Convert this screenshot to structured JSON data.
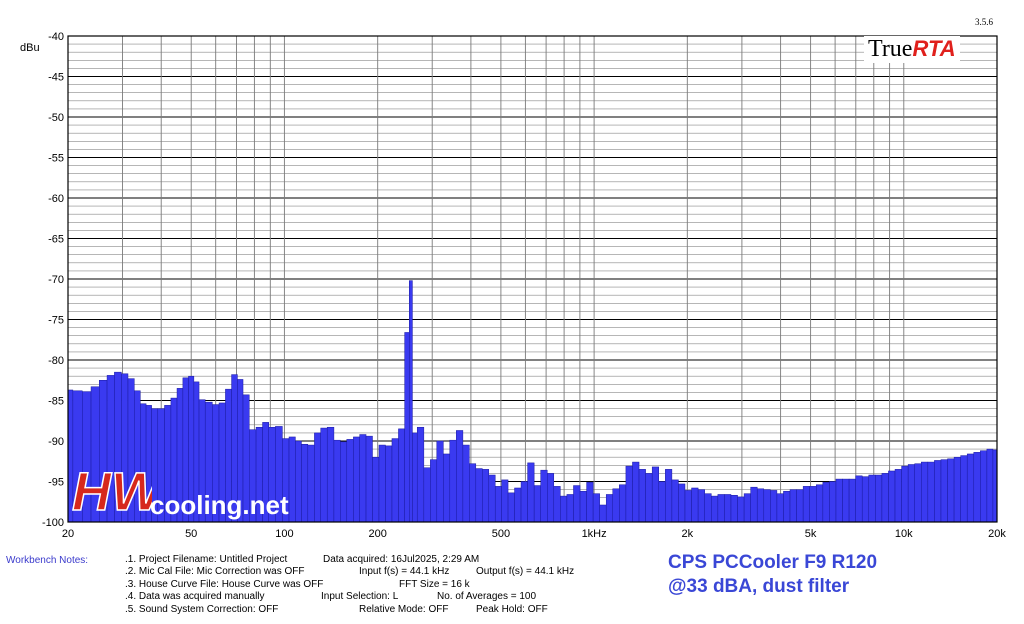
{
  "chart_data": {
    "type": "bar",
    "x_scale": "log",
    "xlim": [
      20,
      20000
    ],
    "ylim": [
      -100,
      -40
    ],
    "ylabel": "dBu",
    "grid": true,
    "bar_color": "#3a3af0",
    "y_ticks": [
      -40,
      -45,
      -50,
      -55,
      -60,
      -65,
      -70,
      -75,
      -80,
      -85,
      -90,
      -95,
      -100
    ],
    "x_tick_labels": [
      {
        "value": 20,
        "label": "20"
      },
      {
        "value": 50,
        "label": "50"
      },
      {
        "value": 100,
        "label": "100"
      },
      {
        "value": 200,
        "label": "200"
      },
      {
        "value": 500,
        "label": "500"
      },
      {
        "value": 1000,
        "label": "1kHz"
      },
      {
        "value": 2000,
        "label": "2k"
      },
      {
        "value": 5000,
        "label": "5k"
      },
      {
        "value": 10000,
        "label": "10k"
      },
      {
        "value": 20000,
        "label": "20k"
      }
    ],
    "points": [
      [
        20,
        -83.7
      ],
      [
        21.5,
        -83.8
      ],
      [
        23,
        -83.9
      ],
      [
        24.5,
        -83.3
      ],
      [
        26,
        -82.5
      ],
      [
        27.5,
        -81.9
      ],
      [
        29,
        -81.5
      ],
      [
        30.5,
        -81.7
      ],
      [
        32,
        -82.3
      ],
      [
        33.5,
        -83.8
      ],
      [
        35,
        -85.4
      ],
      [
        36.5,
        -85.6
      ],
      [
        38,
        -86.0
      ],
      [
        40,
        -86.0
      ],
      [
        42,
        -85.6
      ],
      [
        44,
        -84.7
      ],
      [
        46,
        -83.5
      ],
      [
        48,
        -82.2
      ],
      [
        50,
        -82.0
      ],
      [
        52,
        -82.7
      ],
      [
        54,
        -84.9
      ],
      [
        57,
        -85.2
      ],
      [
        60,
        -85.5
      ],
      [
        63,
        -85.3
      ],
      [
        66,
        -83.6
      ],
      [
        69,
        -81.8
      ],
      [
        72,
        -82.4
      ],
      [
        75,
        -84.3
      ],
      [
        79,
        -88.6
      ],
      [
        83,
        -88.3
      ],
      [
        87,
        -87.7
      ],
      [
        91,
        -88.3
      ],
      [
        96,
        -88.2
      ],
      [
        101,
        -89.7
      ],
      [
        106,
        -89.5
      ],
      [
        111,
        -90.0
      ],
      [
        116,
        -90.4
      ],
      [
        122,
        -90.5
      ],
      [
        128,
        -89.0
      ],
      [
        134,
        -88.4
      ],
      [
        141,
        -88.3
      ],
      [
        148,
        -89.9
      ],
      [
        155,
        -90.1
      ],
      [
        163,
        -89.8
      ],
      [
        171,
        -89.5
      ],
      [
        179,
        -89.2
      ],
      [
        188,
        -89.4
      ],
      [
        197,
        -92.0
      ],
      [
        207,
        -90.5
      ],
      [
        217,
        -90.6
      ],
      [
        228,
        -89.7
      ],
      [
        239,
        -88.5
      ],
      [
        250,
        -76.6
      ],
      [
        256,
        -70.2
      ],
      [
        262,
        -89.0
      ],
      [
        275,
        -88.3
      ],
      [
        289,
        -93.3
      ],
      [
        303,
        -92.3
      ],
      [
        318,
        -90.0
      ],
      [
        334,
        -91.6
      ],
      [
        350,
        -89.9
      ],
      [
        368,
        -88.7
      ],
      [
        386,
        -90.5
      ],
      [
        405,
        -92.8
      ],
      [
        425,
        -93.4
      ],
      [
        446,
        -93.5
      ],
      [
        468,
        -94.2
      ],
      [
        491,
        -95.6
      ],
      [
        515,
        -94.8
      ],
      [
        540,
        -96.4
      ],
      [
        567,
        -95.8
      ],
      [
        595,
        -95.0
      ],
      [
        625,
        -92.7
      ],
      [
        656,
        -95.5
      ],
      [
        689,
        -93.6
      ],
      [
        723,
        -94.0
      ],
      [
        759,
        -95.6
      ],
      [
        797,
        -96.8
      ],
      [
        837,
        -96.6
      ],
      [
        879,
        -95.5
      ],
      [
        923,
        -96.2
      ],
      [
        969,
        -95.1
      ],
      [
        1017,
        -96.5
      ],
      [
        1068,
        -97.9
      ],
      [
        1121,
        -96.6
      ],
      [
        1177,
        -95.9
      ],
      [
        1236,
        -95.4
      ],
      [
        1298,
        -93.1
      ],
      [
        1363,
        -92.6
      ],
      [
        1431,
        -93.5
      ],
      [
        1503,
        -94.0
      ],
      [
        1578,
        -93.2
      ],
      [
        1657,
        -95.0
      ],
      [
        1740,
        -93.5
      ],
      [
        1827,
        -94.8
      ],
      [
        1918,
        -95.3
      ],
      [
        2014,
        -96.1
      ],
      [
        2115,
        -95.8
      ],
      [
        2221,
        -96.0
      ],
      [
        2332,
        -96.5
      ],
      [
        2449,
        -96.8
      ],
      [
        2571,
        -96.6
      ],
      [
        2700,
        -96.6
      ],
      [
        2835,
        -96.7
      ],
      [
        2977,
        -96.9
      ],
      [
        3126,
        -96.5
      ],
      [
        3282,
        -95.7
      ],
      [
        3446,
        -95.9
      ],
      [
        3618,
        -96.0
      ],
      [
        3799,
        -96.1
      ],
      [
        3989,
        -96.5
      ],
      [
        4188,
        -96.2
      ],
      [
        4398,
        -96.0
      ],
      [
        4618,
        -96.0
      ],
      [
        4849,
        -95.6
      ],
      [
        5091,
        -95.6
      ],
      [
        5346,
        -95.4
      ],
      [
        5613,
        -95.1
      ],
      [
        5894,
        -95.0
      ],
      [
        6189,
        -94.7
      ],
      [
        6498,
        -94.7
      ],
      [
        6823,
        -94.7
      ],
      [
        7164,
        -94.3
      ],
      [
        7522,
        -94.4
      ],
      [
        7899,
        -94.2
      ],
      [
        8294,
        -94.2
      ],
      [
        8708,
        -94.0
      ],
      [
        9144,
        -93.7
      ],
      [
        9601,
        -93.5
      ],
      [
        10081,
        -93.1
      ],
      [
        10585,
        -92.9
      ],
      [
        11115,
        -92.8
      ],
      [
        11670,
        -92.6
      ],
      [
        12254,
        -92.6
      ],
      [
        12867,
        -92.4
      ],
      [
        13510,
        -92.3
      ],
      [
        14186,
        -92.2
      ],
      [
        14895,
        -92.0
      ],
      [
        15640,
        -91.8
      ],
      [
        16422,
        -91.6
      ],
      [
        17243,
        -91.4
      ],
      [
        18105,
        -91.2
      ],
      [
        19010,
        -91.0
      ],
      [
        19800,
        -91.1
      ]
    ]
  },
  "version": "3.5.6",
  "brand": {
    "part1": "True",
    "part2": "RTA"
  },
  "logo": {
    "mark": "HW",
    "text": "cooling.net"
  },
  "notes": {
    "label": "Workbench Notes:",
    "lines": [
      [
        ".1. Project Filename: Untitled Project",
        "Data acquired: 16Jul2025, 2:29 AM",
        ""
      ],
      [
        ".2. Mic Cal File: Mic Correction was OFF",
        "Input f(s) = 44.1 kHz",
        "Output f(s) = 44.1 kHz"
      ],
      [
        ".3. House Curve File: House Curve was OFF",
        "FFT Size = 16 k",
        ""
      ],
      [
        ".4. Data was acquired manually",
        "Input Selection: L",
        "No. of Averages = 100"
      ],
      [
        ".5. Sound System Correction: OFF",
        "Relative Mode:  OFF",
        "Peak Hold: OFF"
      ]
    ]
  },
  "caption": {
    "line1": "CPS PCCooler F9 R120",
    "line2": "@33 dBA, dust filter"
  }
}
